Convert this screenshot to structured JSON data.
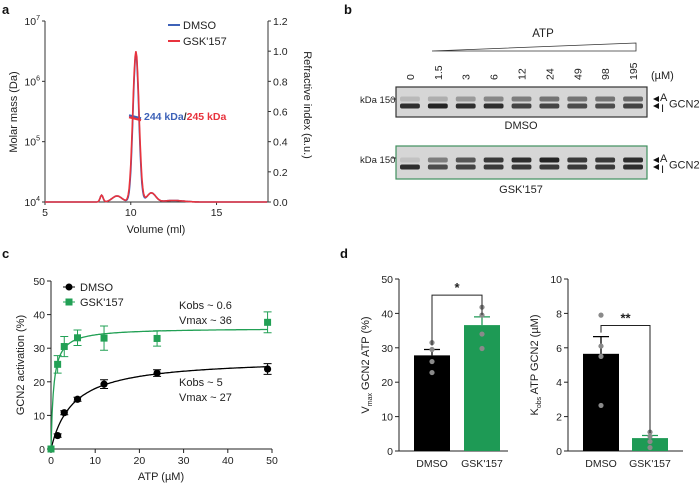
{
  "panels": {
    "a": "a",
    "b": "b",
    "c": "c",
    "d": "d"
  },
  "chart_data": [
    {
      "id": "a",
      "type": "line",
      "xlabel": "Volume (ml)",
      "ylabel": "Molar mass (Da)",
      "y2label": "Refractive index (a.u.)",
      "xlim": [
        5,
        18
      ],
      "xticks": [
        5,
        10,
        15
      ],
      "ylog_exponents": [
        4,
        5,
        6,
        7
      ],
      "ylim_log": [
        4,
        7
      ],
      "y2lim": [
        0,
        1.2
      ],
      "y2ticks": [
        "0.0",
        "0.2",
        "0.4",
        "0.6",
        "0.8",
        "1.0",
        "1.2"
      ],
      "legend": [
        "DMSO",
        "GSK'157"
      ],
      "legend_position": "top-right",
      "colors": {
        "DMSO": "#3d62b8",
        "GSK'157": "#e8333d"
      },
      "annotation": {
        "dmso": "244 kDa",
        "sep": "/",
        "gsk": "245 kDa"
      },
      "series": [
        {
          "name": "DMSO",
          "peak_volume": 10.3,
          "peak_ri": 0.98,
          "molar_mass_kda": 244,
          "mass_range_ml": [
            9.9,
            10.6
          ]
        },
        {
          "name": "GSK'157",
          "peak_volume": 10.3,
          "peak_ri": 1.0,
          "molar_mass_kda": 245,
          "mass_range_ml": [
            9.9,
            10.6
          ]
        }
      ]
    },
    {
      "id": "c",
      "type": "scatter",
      "xlabel": "ATP (µM)",
      "ylabel": "GCN2 activation (%)",
      "xlim": [
        0,
        50
      ],
      "ylim": [
        0,
        50
      ],
      "xticks": [
        0,
        10,
        20,
        30,
        40,
        50
      ],
      "yticks": [
        0,
        10,
        20,
        30,
        40,
        50
      ],
      "legend_position": "top-left",
      "series": [
        {
          "name": "DMSO",
          "color": "#000000",
          "x": [
            0,
            1.5,
            3,
            6,
            12,
            24,
            49
          ],
          "y": [
            0,
            4,
            10.8,
            14.8,
            19.3,
            22.6,
            23.8
          ],
          "err": [
            0.3,
            0.5,
            0.6,
            0.6,
            1.3,
            1.0,
            1.6
          ],
          "fit": {
            "K": 5,
            "Vmax": 27
          },
          "annotation": [
            "Kobs ~ 5",
            "Vmax ~ 27"
          ]
        },
        {
          "name": "GSK'157",
          "color": "#22a055",
          "x": [
            0,
            1.5,
            3,
            6,
            12,
            24,
            49
          ],
          "y": [
            0,
            25.2,
            30.5,
            33.1,
            33,
            32.9,
            37.7
          ],
          "err": [
            0,
            2.6,
            3,
            2.3,
            3.6,
            2.3,
            3.1
          ],
          "fit": {
            "K": 0.6,
            "Vmax": 36
          },
          "annotation": [
            "Kobs ~ 0.6",
            "Vmax ~ 36"
          ]
        }
      ]
    },
    {
      "id": "d-left",
      "type": "bar",
      "ylabel": {
        "main": "V",
        "sub": "max",
        "rest": " GCN2 ATP (%)"
      },
      "ylim": [
        0,
        50
      ],
      "yticks": [
        0,
        10,
        20,
        30,
        40,
        50
      ],
      "categories": [
        "DMSO",
        "GSK'157"
      ],
      "values": [
        27.8,
        36.6
      ],
      "err": [
        1.7,
        2.4
      ],
      "points": [
        [
          31.5,
          29.5,
          26,
          22.8
        ],
        [
          41.8,
          39.5,
          34,
          29.8
        ]
      ],
      "colors": [
        "#000000",
        "#1e9a55"
      ],
      "significance": "*"
    },
    {
      "id": "d-right",
      "type": "bar",
      "ylabel": {
        "main": "K",
        "sub": "obs",
        "rest": " ATP GCN2 (µM)"
      },
      "ylim": [
        0,
        10
      ],
      "yticks": [
        0,
        2,
        4,
        6,
        8,
        10
      ],
      "categories": [
        "DMSO",
        "GSK'157"
      ],
      "values": [
        5.65,
        0.75
      ],
      "err": [
        1.0,
        0.15
      ],
      "points": [
        [
          7.9,
          6.1,
          5.5,
          2.65
        ],
        [
          1.1,
          0.85,
          0.55,
          0.2
        ]
      ],
      "colors": [
        "#000000",
        "#1e9a55"
      ],
      "significance": "**"
    }
  ],
  "gel": {
    "title": "ATP",
    "unit": "(µM)",
    "lanes": [
      "0",
      "1.5",
      "3",
      "6",
      "12",
      "24",
      "49",
      "98",
      "195"
    ],
    "marker": "kDa 150",
    "band_labels": {
      "active": "A",
      "inactive": "I",
      "protein": "GCN2"
    },
    "blots": [
      {
        "label": "DMSO",
        "border": "#333333",
        "upper_intensity": [
          0.15,
          0.2,
          0.3,
          0.4,
          0.45,
          0.5,
          0.5,
          0.5,
          0.55
        ],
        "lower_intensity": [
          0.85,
          0.9,
          0.85,
          0.85,
          0.75,
          0.75,
          0.7,
          0.7,
          0.75
        ]
      },
      {
        "label": "GSK'157",
        "border": "#3f8f5f",
        "upper_intensity": [
          0.1,
          0.45,
          0.65,
          0.8,
          0.85,
          0.9,
          0.8,
          0.8,
          0.85
        ],
        "lower_intensity": [
          0.85,
          0.7,
          0.75,
          0.8,
          0.8,
          0.8,
          0.8,
          0.8,
          0.85
        ]
      }
    ]
  }
}
